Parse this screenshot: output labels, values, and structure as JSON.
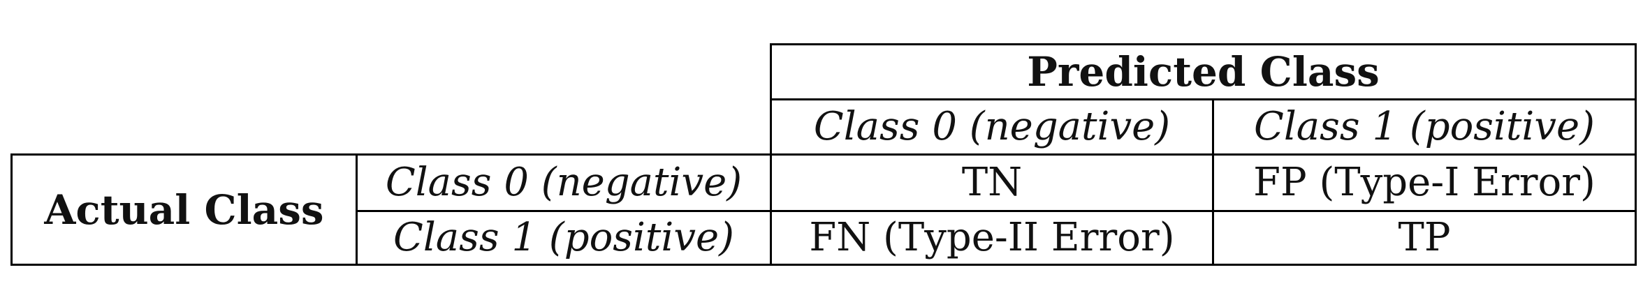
{
  "table": {
    "predicted_header": "Predicted Class",
    "actual_header": "Actual Class",
    "column_headers": [
      "Class 0 (negative)",
      "Class 1 (positive)"
    ],
    "row_headers": [
      "Class 0 (negative)",
      "Class 1 (positive)"
    ],
    "cells": [
      [
        "TN",
        "FP (Type-I Error)"
      ],
      [
        "FN (Type-II Error)",
        "TP"
      ]
    ]
  }
}
